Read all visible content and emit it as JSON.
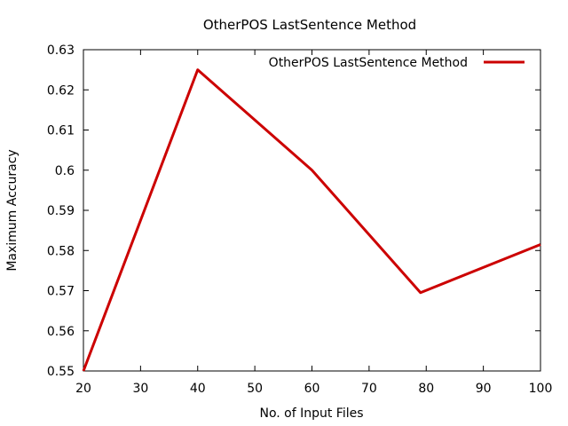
{
  "chart_data": {
    "type": "line",
    "title": "OtherPOS LastSentence Method",
    "xlabel": "No. of Input Files",
    "ylabel": "Maximum Accuracy",
    "xlim": [
      20,
      100
    ],
    "ylim": [
      0.55,
      0.63
    ],
    "x_ticks": [
      "20",
      "30",
      "40",
      "50",
      "60",
      "70",
      "80",
      "90",
      "100"
    ],
    "y_ticks": [
      "0.55",
      "0.56",
      "0.57",
      "0.58",
      "0.59",
      "0.6",
      "0.61",
      "0.62",
      "0.63"
    ],
    "grid": false,
    "legend_position": "top-right",
    "series": [
      {
        "name": "OtherPOS LastSentence Method",
        "color": "#cc0000",
        "x": [
          20,
          40,
          60,
          79,
          100
        ],
        "y": [
          0.55,
          0.625,
          0.6,
          0.5695,
          0.5815
        ]
      }
    ]
  }
}
